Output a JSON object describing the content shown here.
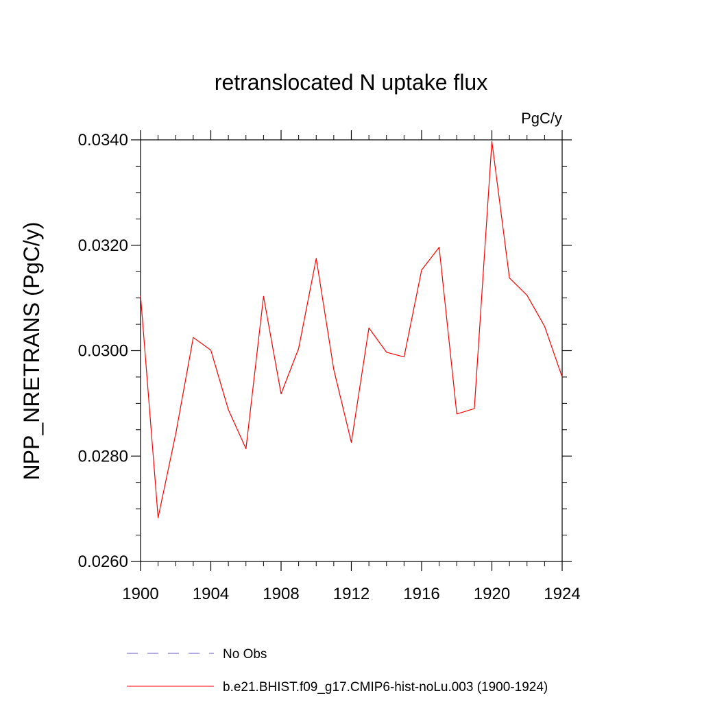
{
  "chart_data": {
    "type": "line",
    "title": "retranslocated N uptake flux",
    "units_label": "PgC/y",
    "ylabel": "NPP_NRETRANS  (PgC/y)",
    "xlabel": "",
    "xlim": [
      1900,
      1924
    ],
    "ylim": [
      0.026,
      0.034
    ],
    "x_ticks": [
      1900,
      1904,
      1908,
      1912,
      1916,
      1920,
      1924
    ],
    "x_tick_labels": [
      "1900",
      "1904",
      "1908",
      "1912",
      "1916",
      "1920",
      "1924"
    ],
    "y_ticks": [
      0.026,
      0.028,
      0.03,
      0.032,
      0.034
    ],
    "y_tick_labels": [
      "0.0260",
      "0.0280",
      "0.0300",
      "0.0320",
      "0.0340"
    ],
    "y_minor_step": 0.0005,
    "x_minor_step": 1,
    "grid": false,
    "legend_position": "bottom",
    "series": [
      {
        "name": "b.e21.BHIST.f09_g17.CMIP6-hist-noLu.003 (1900-1924)",
        "color": "#ff0000",
        "style": "solid",
        "x": [
          1900,
          1901,
          1902,
          1903,
          1904,
          1905,
          1906,
          1907,
          1908,
          1909,
          1910,
          1911,
          1912,
          1913,
          1914,
          1915,
          1916,
          1917,
          1918,
          1919,
          1920,
          1921,
          1922,
          1923,
          1924
        ],
        "values": [
          0.03105,
          0.02683,
          0.02842,
          0.03025,
          0.03001,
          0.02888,
          0.02814,
          0.03103,
          0.02918,
          0.03004,
          0.03175,
          0.02964,
          0.02826,
          0.03043,
          0.02997,
          0.02988,
          0.03153,
          0.03196,
          0.0288,
          0.0289,
          0.03397,
          0.03138,
          0.03105,
          0.03046,
          0.0295
        ]
      }
    ],
    "legend": [
      {
        "label": "No Obs",
        "color": "#6a5acd",
        "style": "dashed"
      },
      {
        "label": "b.e21.BHIST.f09_g17.CMIP6-hist-noLu.003 (1900-1924)",
        "color": "#ff0000",
        "style": "solid"
      }
    ]
  }
}
